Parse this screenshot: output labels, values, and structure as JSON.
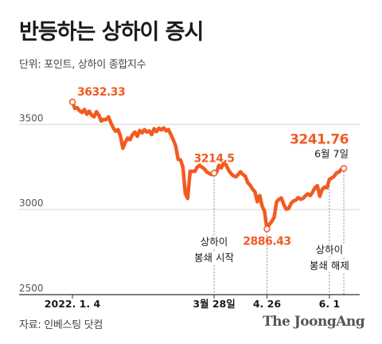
{
  "header": {
    "title": "반등하는 상하이 증시",
    "unit": "단위: 포인트, 상하이 종합지수"
  },
  "footer": {
    "source": "자료: 인베스팅 닷컴",
    "brand": "The JoongAng"
  },
  "colors": {
    "line": "#f25a22",
    "grid": "#d6d6d6",
    "axis": "#333333"
  },
  "chart_data": {
    "type": "line",
    "title": "반등하는 상하이 증시",
    "ylabel": "",
    "xlabel": "",
    "ylim": [
      2500,
      3700
    ],
    "yticks": [
      2500,
      3000,
      3500
    ],
    "grid": true,
    "x_tick_labels": [
      {
        "label": "2022. 1. 4",
        "day": 0
      },
      {
        "label": "3월 28일",
        "day": 59
      },
      {
        "label": "4. 26",
        "day": 81
      },
      {
        "label": "6. 1",
        "day": 107
      }
    ],
    "series": [
      {
        "name": "",
        "points": [
          [
            0,
            3632.33
          ],
          [
            1,
            3595
          ],
          [
            2,
            3598
          ],
          [
            3,
            3580
          ],
          [
            4,
            3570
          ],
          [
            5,
            3588
          ],
          [
            6,
            3560
          ],
          [
            7,
            3578
          ],
          [
            8,
            3555
          ],
          [
            9,
            3545
          ],
          [
            10,
            3575
          ],
          [
            11,
            3555
          ],
          [
            12,
            3520
          ],
          [
            13,
            3530
          ],
          [
            14,
            3528
          ],
          [
            15,
            3545
          ],
          [
            16,
            3510
          ],
          [
            17,
            3480
          ],
          [
            18,
            3460
          ],
          [
            19,
            3470
          ],
          [
            20,
            3430
          ],
          [
            21,
            3360
          ],
          [
            22,
            3395
          ],
          [
            23,
            3420
          ],
          [
            24,
            3410
          ],
          [
            25,
            3440
          ],
          [
            26,
            3455
          ],
          [
            27,
            3430
          ],
          [
            28,
            3465
          ],
          [
            29,
            3450
          ],
          [
            30,
            3470
          ],
          [
            31,
            3455
          ],
          [
            32,
            3462
          ],
          [
            33,
            3440
          ],
          [
            34,
            3475
          ],
          [
            35,
            3458
          ],
          [
            36,
            3478
          ],
          [
            37,
            3468
          ],
          [
            38,
            3480
          ],
          [
            39,
            3462
          ],
          [
            40,
            3470
          ],
          [
            41,
            3440
          ],
          [
            42,
            3410
          ],
          [
            43,
            3372
          ],
          [
            44,
            3295
          ],
          [
            45,
            3292
          ],
          [
            46,
            3250
          ],
          [
            47,
            3095
          ],
          [
            48,
            3065
          ],
          [
            49,
            3225
          ],
          [
            50,
            3225
          ],
          [
            51,
            3225
          ],
          [
            52,
            3250
          ],
          [
            53,
            3260
          ],
          [
            54,
            3248
          ],
          [
            55,
            3238
          ],
          [
            56,
            3220
          ],
          [
            57,
            3212
          ],
          [
            58,
            3205
          ],
          [
            59,
            3214.5
          ],
          [
            60,
            3218
          ],
          [
            61,
            3260
          ],
          [
            62,
            3245
          ],
          [
            63,
            3272
          ],
          [
            64,
            3262
          ],
          [
            65,
            3232
          ],
          [
            66,
            3212
          ],
          [
            67,
            3198
          ],
          [
            68,
            3192
          ],
          [
            69,
            3205
          ],
          [
            70,
            3222
          ],
          [
            71,
            3205
          ],
          [
            72,
            3196
          ],
          [
            73,
            3158
          ],
          [
            74,
            3143
          ],
          [
            75,
            3120
          ],
          [
            76,
            3105
          ],
          [
            77,
            3045
          ],
          [
            78,
            3082
          ],
          [
            79,
            3020
          ],
          [
            80,
            2990
          ],
          [
            81,
            2886.43
          ],
          [
            82,
            2912
          ],
          [
            83,
            2930
          ],
          [
            84,
            2955
          ],
          [
            85,
            3045
          ],
          [
            86,
            3060
          ],
          [
            87,
            3068
          ],
          [
            88,
            3030
          ],
          [
            89,
            3002
          ],
          [
            90,
            3005
          ],
          [
            91,
            3035
          ],
          [
            92,
            3050
          ],
          [
            93,
            3055
          ],
          [
            94,
            3070
          ],
          [
            95,
            3060
          ],
          [
            96,
            3065
          ],
          [
            97,
            3080
          ],
          [
            98,
            3092
          ],
          [
            99,
            3082
          ],
          [
            100,
            3102
          ],
          [
            101,
            3128
          ],
          [
            102,
            3140
          ],
          [
            103,
            3078
          ],
          [
            104,
            3118
          ],
          [
            105,
            3132
          ],
          [
            106,
            3128
          ],
          [
            107,
            3178
          ],
          [
            108,
            3185
          ],
          [
            109,
            3196
          ],
          [
            110,
            3215
          ],
          [
            111,
            3221
          ],
          [
            112,
            3238
          ],
          [
            113,
            3241.76
          ]
        ]
      }
    ],
    "annotations": [
      {
        "day": 0,
        "value": 3632.33,
        "text": "3632.33"
      },
      {
        "day": 59,
        "value": 3214.5,
        "text": "3214.5",
        "note": [
          "상하이",
          "봉쇄 시작"
        ]
      },
      {
        "day": 81,
        "value": 2886.43,
        "text": "2886.43"
      },
      {
        "day": 107,
        "value": 3178,
        "text": "",
        "note": [
          "상하이",
          "봉쇄 해제"
        ]
      },
      {
        "day": 113,
        "value": 3241.76,
        "text": "3241.76",
        "date": "6월 7일"
      }
    ]
  }
}
